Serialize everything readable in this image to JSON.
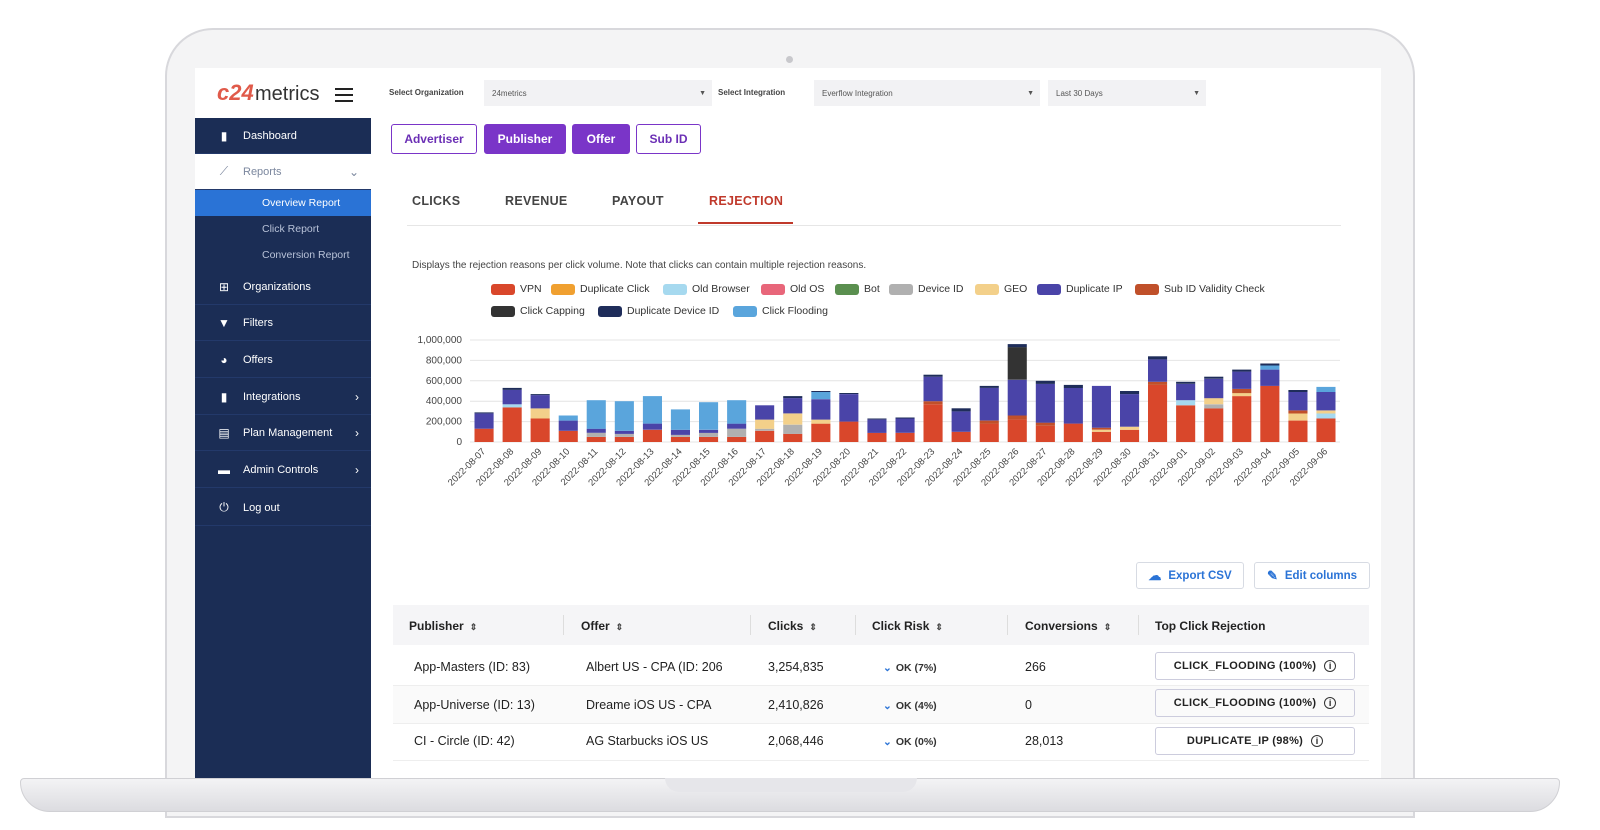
{
  "brand": {
    "mark": "c24",
    "name": "metrics"
  },
  "sidebar": {
    "items": [
      {
        "label": "Dashboard",
        "icon": "bar-chart-icon"
      },
      {
        "label": "Reports",
        "icon": "trend-icon"
      },
      {
        "label": "Organizations",
        "icon": "org-icon"
      },
      {
        "label": "Filters",
        "icon": "filter-icon"
      },
      {
        "label": "Offers",
        "icon": "pie-icon"
      },
      {
        "label": "Integrations",
        "icon": "bar-chart-icon"
      },
      {
        "label": "Plan Management",
        "icon": "document-icon"
      },
      {
        "label": "Admin Controls",
        "icon": "toolbox-icon"
      },
      {
        "label": "Log out",
        "icon": "power-icon"
      }
    ],
    "sub_items": [
      "Overview Report",
      "Click Report",
      "Conversion Report"
    ]
  },
  "filters": {
    "org_label": "Select Organization",
    "org_value": "24metrics",
    "integration_label": "Select Integration",
    "integration_value": "Everflow Integration",
    "range_value": "Last 30 Days"
  },
  "group_buttons": [
    "Advertiser",
    "Publisher",
    "Offer",
    "Sub ID"
  ],
  "tabs": [
    "CLICKS",
    "REVENUE",
    "PAYOUT",
    "REJECTION"
  ],
  "description": "Displays the rejection reasons per click volume. Note that clicks can contain multiple rejection reasons.",
  "colors": {
    "sidebar": "#1b2d55",
    "accent": "#7a35c8",
    "active_tab": "#c0392b",
    "link": "#2a73d6"
  },
  "chart_data": {
    "type": "bar",
    "stacked": true,
    "legend": [
      {
        "name": "VPN",
        "color": "#d9472b"
      },
      {
        "name": "Duplicate Click",
        "color": "#f0a030"
      },
      {
        "name": "Old Browser",
        "color": "#a6d9ef"
      },
      {
        "name": "Old OS",
        "color": "#e8667a"
      },
      {
        "name": "Bot",
        "color": "#5a8f4f"
      },
      {
        "name": "Device ID",
        "color": "#b0b0b0"
      },
      {
        "name": "GEO",
        "color": "#f3d08a"
      },
      {
        "name": "Duplicate IP",
        "color": "#4a44a8"
      },
      {
        "name": "Sub ID Validity Check",
        "color": "#c0502a"
      },
      {
        "name": "Click Capping",
        "color": "#333333"
      },
      {
        "name": "Duplicate Device ID",
        "color": "#1f2d5a"
      },
      {
        "name": "Click Flooding",
        "color": "#5aa5dc"
      }
    ],
    "y_ticks": [
      "0",
      "200,000",
      "400,000",
      "600,000",
      "800,000",
      "1,000,000"
    ],
    "ylim": [
      0,
      1000000
    ],
    "categories": [
      "2022-08-07",
      "2022-08-08",
      "2022-08-09",
      "2022-08-10",
      "2022-08-11",
      "2022-08-12",
      "2022-08-13",
      "2022-08-14",
      "2022-08-15",
      "2022-08-16",
      "2022-08-17",
      "2022-08-18",
      "2022-08-19",
      "2022-08-20",
      "2022-08-21",
      "2022-08-22",
      "2022-08-23",
      "2022-08-24",
      "2022-08-25",
      "2022-08-26",
      "2022-08-27",
      "2022-08-28",
      "2022-08-29",
      "2022-08-30",
      "2022-08-31",
      "2022-09-01",
      "2022-09-02",
      "2022-09-03",
      "2022-09-04",
      "2022-09-05",
      "2022-09-06"
    ],
    "series": [
      {
        "name": "VPN",
        "values": [
          130000,
          340000,
          230000,
          110000,
          50000,
          50000,
          120000,
          50000,
          50000,
          50000,
          110000,
          80000,
          180000,
          200000,
          90000,
          90000,
          370000,
          100000,
          180000,
          220000,
          160000,
          180000,
          100000,
          120000,
          560000,
          360000,
          330000,
          450000,
          550000,
          210000,
          230000
        ]
      },
      {
        "name": "Old Browser",
        "values": [
          0,
          30000,
          0,
          0,
          0,
          0,
          0,
          0,
          0,
          0,
          0,
          0,
          0,
          0,
          0,
          0,
          0,
          0,
          0,
          0,
          0,
          0,
          0,
          0,
          0,
          50000,
          0,
          0,
          0,
          0,
          50000
        ]
      },
      {
        "name": "Duplicate Click",
        "values": [
          0,
          0,
          0,
          0,
          0,
          0,
          0,
          0,
          0,
          0,
          0,
          0,
          0,
          0,
          0,
          0,
          0,
          0,
          0,
          0,
          0,
          0,
          0,
          0,
          0,
          0,
          0,
          0,
          0,
          0,
          0
        ]
      },
      {
        "name": "Device ID",
        "values": [
          0,
          0,
          0,
          0,
          40000,
          30000,
          0,
          20000,
          40000,
          80000,
          20000,
          90000,
          0,
          0,
          0,
          0,
          0,
          0,
          0,
          0,
          0,
          0,
          0,
          0,
          0,
          0,
          40000,
          0,
          0,
          0,
          0
        ]
      },
      {
        "name": "GEO",
        "values": [
          0,
          0,
          100000,
          0,
          0,
          0,
          0,
          0,
          0,
          0,
          90000,
          110000,
          40000,
          0,
          0,
          0,
          0,
          0,
          0,
          0,
          0,
          0,
          20000,
          30000,
          0,
          0,
          60000,
          30000,
          0,
          70000,
          30000
        ]
      },
      {
        "name": "Sub ID Validity Check",
        "values": [
          0,
          0,
          0,
          0,
          0,
          0,
          0,
          0,
          0,
          0,
          0,
          0,
          0,
          0,
          0,
          0,
          30000,
          0,
          30000,
          40000,
          30000,
          0,
          20000,
          0,
          30000,
          0,
          0,
          40000,
          0,
          30000,
          0
        ]
      },
      {
        "name": "Duplicate IP",
        "values": [
          150000,
          140000,
          130000,
          100000,
          40000,
          30000,
          60000,
          50000,
          30000,
          50000,
          140000,
          150000,
          200000,
          270000,
          130000,
          140000,
          240000,
          200000,
          320000,
          350000,
          380000,
          350000,
          410000,
          320000,
          220000,
          160000,
          190000,
          170000,
          160000,
          180000,
          180000
        ]
      },
      {
        "name": "Click Flooding",
        "values": [
          0,
          0,
          0,
          50000,
          280000,
          290000,
          270000,
          200000,
          270000,
          230000,
          0,
          0,
          70000,
          0,
          0,
          0,
          0,
          0,
          0,
          0,
          0,
          0,
          0,
          0,
          0,
          0,
          0,
          0,
          40000,
          0,
          50000
        ]
      },
      {
        "name": "Click Capping",
        "values": [
          0,
          0,
          0,
          0,
          0,
          0,
          0,
          0,
          0,
          0,
          0,
          0,
          0,
          0,
          0,
          0,
          0,
          0,
          0,
          320000,
          0,
          0,
          0,
          0,
          0,
          0,
          0,
          0,
          0,
          0,
          0
        ]
      },
      {
        "name": "Duplicate Device ID",
        "values": [
          10000,
          20000,
          10000,
          0,
          0,
          0,
          0,
          0,
          0,
          0,
          0,
          20000,
          10000,
          10000,
          10000,
          10000,
          20000,
          30000,
          20000,
          30000,
          30000,
          30000,
          0,
          30000,
          30000,
          20000,
          20000,
          20000,
          20000,
          20000,
          0
        ]
      }
    ]
  },
  "table": {
    "export_label": "Export CSV",
    "edit_label": "Edit columns",
    "headers": [
      "Publisher",
      "Offer",
      "Clicks",
      "Click Risk",
      "Conversions",
      "Top Click Rejection"
    ],
    "rows": [
      {
        "publisher": "App-Masters (ID: 83)",
        "offer": "Albert US - CPA (ID: 206",
        "clicks": "3,254,835",
        "risk": "OK (7%)",
        "conversions": "266",
        "rejection": "CLICK_FLOODING (100%)"
      },
      {
        "publisher": "App-Universe (ID: 13)",
        "offer": "Dreame iOS US - CPA",
        "clicks": "2,410,826",
        "risk": "OK (4%)",
        "conversions": "0",
        "rejection": "CLICK_FLOODING (100%)"
      },
      {
        "publisher": "CI - Circle (ID: 42)",
        "offer": "AG Starbucks iOS US",
        "clicks": "2,068,446",
        "risk": "OK (0%)",
        "conversions": "28,013",
        "rejection": "DUPLICATE_IP (98%)"
      }
    ]
  }
}
